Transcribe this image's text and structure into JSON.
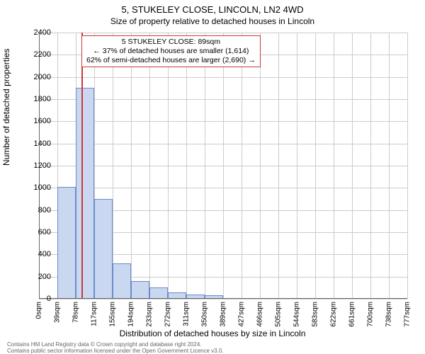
{
  "title_line1": "5, STUKELEY CLOSE, LINCOLN, LN2 4WD",
  "title_line2": "Size of property relative to detached houses in Lincoln",
  "yaxis_label": "Number of detached properties",
  "xaxis_label": "Distribution of detached houses by size in Lincoln",
  "chart": {
    "type": "histogram",
    "ylim": [
      0,
      2400
    ],
    "yticks": [
      0,
      200,
      400,
      600,
      800,
      1000,
      1200,
      1400,
      1600,
      1800,
      2000,
      2200,
      2400
    ],
    "xtick_labels": [
      "0sqm",
      "39sqm",
      "78sqm",
      "117sqm",
      "155sqm",
      "194sqm",
      "233sqm",
      "272sqm",
      "311sqm",
      "350sqm",
      "389sqm",
      "427sqm",
      "466sqm",
      "505sqm",
      "544sqm",
      "583sqm",
      "622sqm",
      "661sqm",
      "700sqm",
      "738sqm",
      "777sqm"
    ],
    "bar_values": [
      0,
      1010,
      1900,
      900,
      320,
      160,
      100,
      60,
      40,
      30,
      0,
      0,
      0,
      0,
      0,
      0,
      0,
      0,
      0,
      0
    ],
    "bar_fill": "#c9d8f0",
    "bar_border": "#6a8bc9",
    "grid_color": "#cccccc",
    "background": "#ffffff",
    "axis_color": "#666666",
    "marker_value": 89,
    "marker_xmax": 777,
    "marker_color": "#c93a3a",
    "font_family": "Arial",
    "title_fontsize": 13,
    "label_fontsize": 12,
    "tick_fontsize": 11
  },
  "annotation": {
    "line1": "5 STUKELEY CLOSE: 89sqm",
    "line2": "← 37% of detached houses are smaller (1,614)",
    "line3": "62% of semi-detached houses are larger (2,690) →"
  },
  "footer": {
    "line1": "Contains HM Land Registry data © Crown copyright and database right 2024.",
    "line2": "Contains public sector information licensed under the Open Government Licence v3.0."
  }
}
